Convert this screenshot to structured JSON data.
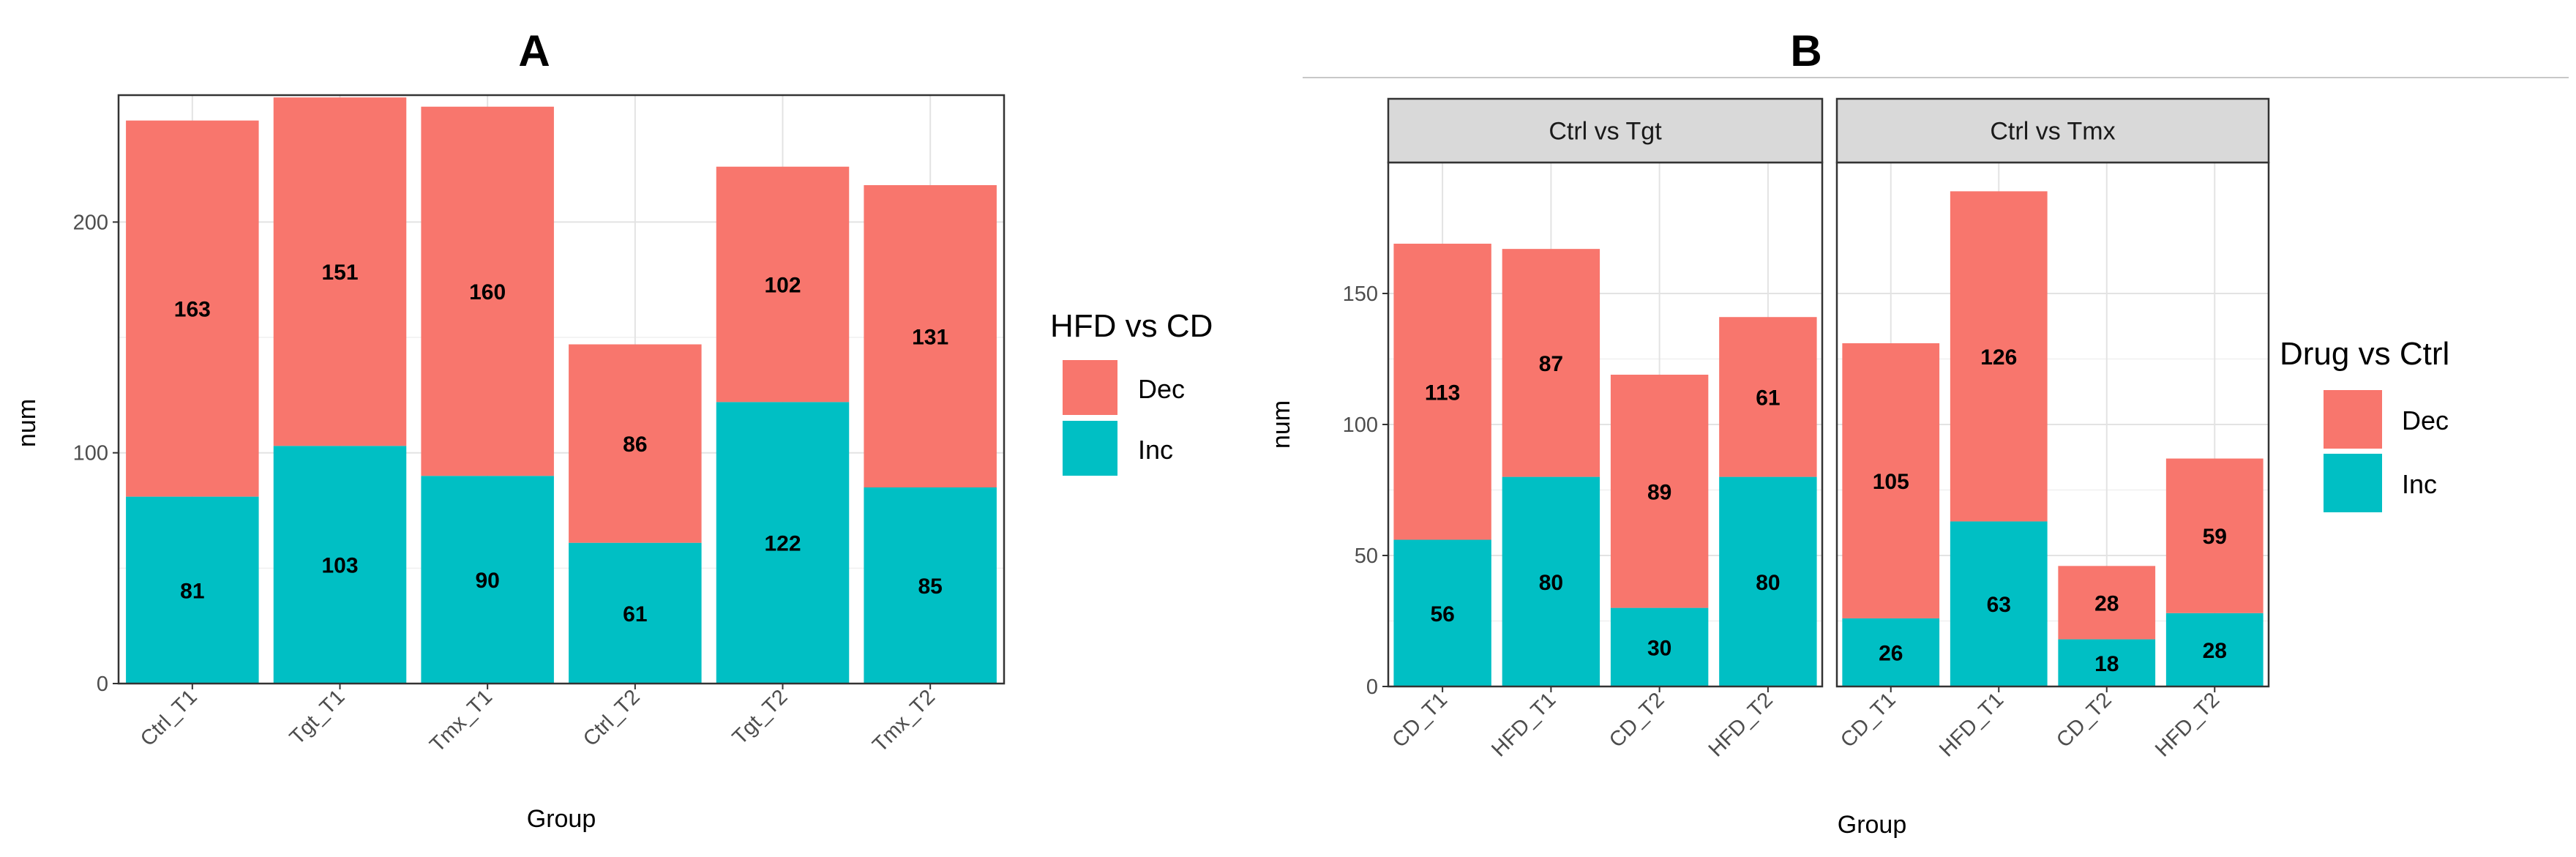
{
  "chart_data": [
    {
      "type": "bar",
      "stacked": true,
      "title": "A",
      "xlabel": "Group",
      "ylabel": "num",
      "ylim": [
        0,
        255
      ],
      "yticks": [
        0,
        100,
        200
      ],
      "grid": true,
      "legend_placement": "right",
      "legend_title": "HFD vs CD",
      "categories": [
        "Ctrl_T1",
        "Tgt_T1",
        "Tmx_T1",
        "Ctrl_T2",
        "Tgt_T2",
        "Tmx_T2"
      ],
      "series": [
        {
          "name": "Dec",
          "color": "#F8766D",
          "values": [
            163,
            151,
            160,
            86,
            102,
            131
          ]
        },
        {
          "name": "Inc",
          "color": "#00BFC4",
          "values": [
            81,
            103,
            90,
            61,
            122,
            85
          ]
        }
      ]
    },
    {
      "type": "bar",
      "stacked": true,
      "title": "B",
      "xlabel": "Group",
      "ylabel": "num",
      "ylim": [
        0,
        200
      ],
      "yticks": [
        0,
        50,
        100,
        150
      ],
      "grid": true,
      "legend_placement": "right",
      "legend_title": "Drug vs Ctrl",
      "facets": [
        {
          "label": "Ctrl vs Tgt",
          "categories": [
            "CD_T1",
            "HFD_T1",
            "CD_T2",
            "HFD_T2"
          ],
          "series": [
            {
              "name": "Dec",
              "color": "#F8766D",
              "values": [
                113,
                87,
                89,
                61
              ]
            },
            {
              "name": "Inc",
              "color": "#00BFC4",
              "values": [
                56,
                80,
                30,
                80
              ]
            }
          ]
        },
        {
          "label": "Ctrl vs Tmx",
          "categories": [
            "CD_T1",
            "HFD_T1",
            "CD_T2",
            "HFD_T2"
          ],
          "series": [
            {
              "name": "Dec",
              "color": "#F8766D",
              "values": [
                105,
                126,
                28,
                59
              ]
            },
            {
              "name": "Inc",
              "color": "#00BFC4",
              "values": [
                26,
                63,
                18,
                28
              ]
            }
          ]
        }
      ]
    }
  ]
}
